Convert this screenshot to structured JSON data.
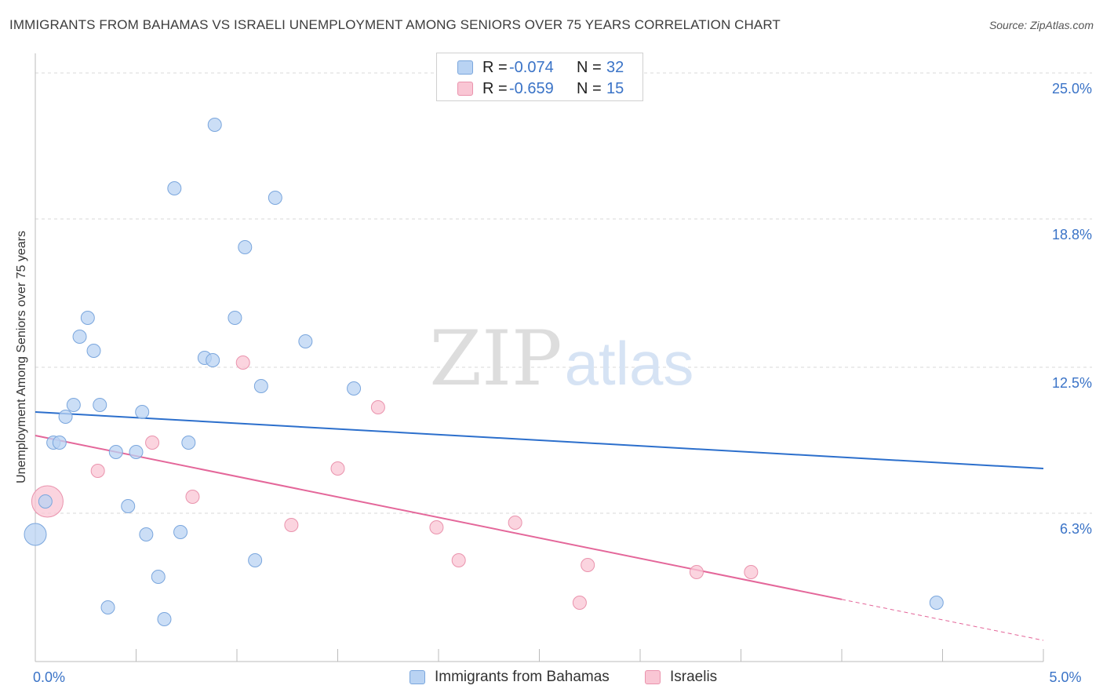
{
  "title": "IMMIGRANTS FROM BAHAMAS VS ISRAELI UNEMPLOYMENT AMONG SENIORS OVER 75 YEARS CORRELATION CHART",
  "source": "Source: ZipAtlas.com",
  "watermark": {
    "zip": "ZIP",
    "atlas": "atlas"
  },
  "legend": {
    "series1": {
      "r_label": "R =",
      "r_value": "-0.074",
      "n_label": "N =",
      "n_value": "32"
    },
    "series2": {
      "r_label": "R =",
      "r_value": "-0.659",
      "n_label": "N =",
      "n_value": "15"
    }
  },
  "colors": {
    "series1_fill": "#b9d3f3",
    "series1_stroke": "#7aa6dd",
    "series1_line": "#2c6fcc",
    "series2_fill": "#f9c6d4",
    "series2_stroke": "#ea93ad",
    "series2_line": "#e4679a",
    "tick_label": "#3a73c7",
    "grid": "#d9d9d9"
  },
  "chart_data": {
    "type": "scatter",
    "title": "IMMIGRANTS FROM BAHAMAS VS ISRAELI UNEMPLOYMENT AMONG SENIORS OVER 75 YEARS CORRELATION CHART",
    "xlabel": "",
    "ylabel": "Unemployment Among Seniors over 75 years",
    "xlim": [
      0,
      5
    ],
    "ylim": [
      0,
      25.5
    ],
    "x_tick_labels": [
      {
        "value": 0,
        "label": "0.0%"
      },
      {
        "value": 5,
        "label": "5.0%"
      }
    ],
    "y_tick_labels": [
      {
        "value": 6.3,
        "label": "6.3%"
      },
      {
        "value": 12.5,
        "label": "12.5%"
      },
      {
        "value": 18.8,
        "label": "18.8%"
      },
      {
        "value": 25.0,
        "label": "25.0%"
      }
    ],
    "grid": true,
    "series": [
      {
        "name": "Immigrants from Bahamas",
        "r": -0.074,
        "n": 32,
        "trend": {
          "x": [
            0,
            5
          ],
          "y": [
            10.6,
            8.2
          ]
        },
        "points": [
          {
            "x": 0.89,
            "y": 22.8,
            "size": 1
          },
          {
            "x": 0.69,
            "y": 20.1,
            "size": 1
          },
          {
            "x": 1.19,
            "y": 19.7,
            "size": 1
          },
          {
            "x": 1.04,
            "y": 17.6,
            "size": 1
          },
          {
            "x": 0.26,
            "y": 14.6,
            "size": 1
          },
          {
            "x": 0.99,
            "y": 14.6,
            "size": 1
          },
          {
            "x": 0.22,
            "y": 13.8,
            "size": 1
          },
          {
            "x": 1.34,
            "y": 13.6,
            "size": 1
          },
          {
            "x": 0.29,
            "y": 13.2,
            "size": 1
          },
          {
            "x": 0.84,
            "y": 12.9,
            "size": 1
          },
          {
            "x": 0.88,
            "y": 12.8,
            "size": 1
          },
          {
            "x": 1.12,
            "y": 11.7,
            "size": 1
          },
          {
            "x": 1.58,
            "y": 11.6,
            "size": 1
          },
          {
            "x": 0.19,
            "y": 10.9,
            "size": 1
          },
          {
            "x": 0.32,
            "y": 10.9,
            "size": 1
          },
          {
            "x": 0.15,
            "y": 10.4,
            "size": 1
          },
          {
            "x": 0.53,
            "y": 10.6,
            "size": 1
          },
          {
            "x": 0.09,
            "y": 9.3,
            "size": 1
          },
          {
            "x": 0.12,
            "y": 9.3,
            "size": 1
          },
          {
            "x": 0.76,
            "y": 9.3,
            "size": 1
          },
          {
            "x": 0.4,
            "y": 8.9,
            "size": 1
          },
          {
            "x": 0.5,
            "y": 8.9,
            "size": 1
          },
          {
            "x": 0.05,
            "y": 6.8,
            "size": 1
          },
          {
            "x": 0.46,
            "y": 6.6,
            "size": 1
          },
          {
            "x": 0.0,
            "y": 5.4,
            "size": 2
          },
          {
            "x": 0.55,
            "y": 5.4,
            "size": 1
          },
          {
            "x": 0.72,
            "y": 5.5,
            "size": 1
          },
          {
            "x": 1.09,
            "y": 4.3,
            "size": 1
          },
          {
            "x": 0.61,
            "y": 3.6,
            "size": 1
          },
          {
            "x": 0.36,
            "y": 2.3,
            "size": 1
          },
          {
            "x": 0.64,
            "y": 1.8,
            "size": 1
          },
          {
            "x": 4.47,
            "y": 2.5,
            "size": 1
          }
        ]
      },
      {
        "name": "Israelis",
        "r": -0.659,
        "n": 15,
        "trend": {
          "x": [
            0,
            5
          ],
          "y": [
            9.6,
            0.9
          ],
          "solid_until_x": 4.0
        },
        "points": [
          {
            "x": 1.03,
            "y": 12.7,
            "size": 1
          },
          {
            "x": 1.7,
            "y": 10.8,
            "size": 1
          },
          {
            "x": 0.58,
            "y": 9.3,
            "size": 1
          },
          {
            "x": 0.31,
            "y": 8.1,
            "size": 1
          },
          {
            "x": 1.5,
            "y": 8.2,
            "size": 1
          },
          {
            "x": 0.78,
            "y": 7.0,
            "size": 1
          },
          {
            "x": 0.06,
            "y": 6.8,
            "size": 3
          },
          {
            "x": 1.27,
            "y": 5.8,
            "size": 1
          },
          {
            "x": 1.99,
            "y": 5.7,
            "size": 1
          },
          {
            "x": 2.38,
            "y": 5.9,
            "size": 1
          },
          {
            "x": 2.1,
            "y": 4.3,
            "size": 1
          },
          {
            "x": 2.74,
            "y": 4.1,
            "size": 1
          },
          {
            "x": 3.28,
            "y": 3.8,
            "size": 1
          },
          {
            "x": 3.55,
            "y": 3.8,
            "size": 1
          },
          {
            "x": 2.7,
            "y": 2.5,
            "size": 1
          }
        ]
      }
    ]
  }
}
